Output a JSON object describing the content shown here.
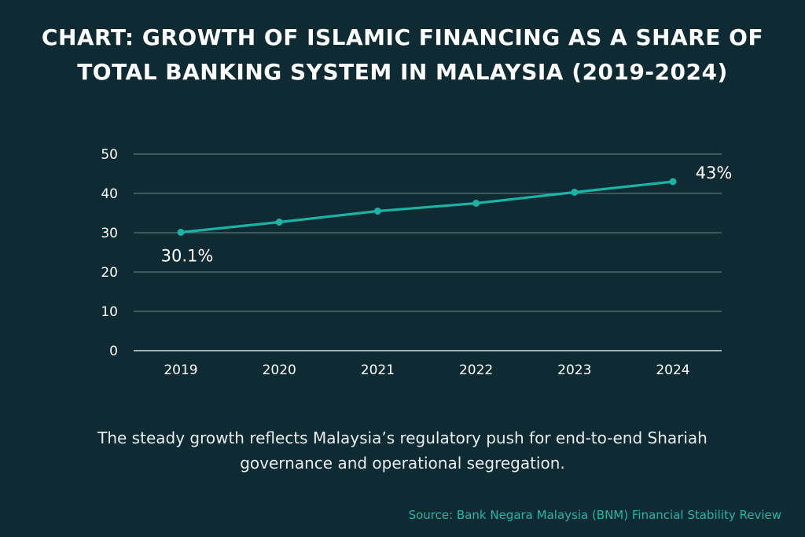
{
  "header": {
    "title_line1": "CHART: GROWTH OF ISLAMIC FINANCING AS A SHARE OF",
    "title_line2": "TOTAL BANKING SYSTEM IN MALAYSIA (2019-2024)"
  },
  "chart_data": {
    "type": "line",
    "x": [
      "2019",
      "2020",
      "2021",
      "2022",
      "2023",
      "2024"
    ],
    "series": [
      {
        "values": [
          30.1,
          32.7,
          35.5,
          37.5,
          40.3,
          43
        ]
      }
    ],
    "annotations": [
      {
        "index": 0,
        "text": "30.1%"
      },
      {
        "index": 5,
        "text": "43%"
      }
    ],
    "yticks": [
      "0",
      "10",
      "20",
      "30",
      "40",
      "50"
    ],
    "ylim": [
      0,
      50
    ],
    "grid": true,
    "line_color": "#1bb3a3",
    "grid_color": "#5b7078"
  },
  "caption": {
    "line1": "The steady growth reflects Malaysia’s regulatory push for end-to-end Shariah",
    "line2": "governance and operational segregation."
  },
  "source": "Source: Bank Negara Malaysia (BNM) Financial Stability Review",
  "colors": {
    "background": "#0e2a32",
    "accent": "#22b5a8"
  }
}
